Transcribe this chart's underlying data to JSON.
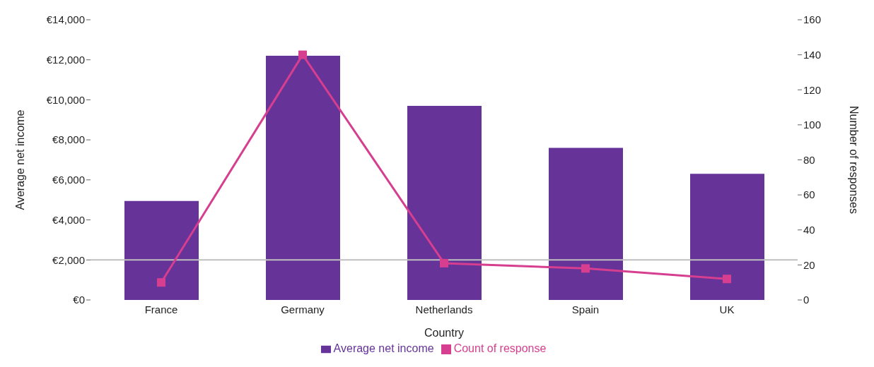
{
  "chart_data": {
    "type": "bar",
    "xlabel": "Country",
    "ylabel": "Average net income",
    "y2label": "Number of responses",
    "categories": [
      "France",
      "Germany",
      "Netherlands",
      "Spain",
      "UK"
    ],
    "series": [
      {
        "name": "Average net income",
        "color": "#663399",
        "values": [
          4950,
          12200,
          9700,
          7600,
          6300
        ]
      },
      {
        "name": "Count of response",
        "type": "line",
        "axis": "y2",
        "color": "#d63e8f",
        "marker": "square",
        "values": [
          10,
          140,
          21,
          18,
          12
        ]
      }
    ],
    "ylim": [
      0,
      14000
    ],
    "yticks": [
      {
        "value": 0,
        "label": "€0"
      },
      {
        "value": 2000,
        "label": "€2,000"
      },
      {
        "value": 4000,
        "label": "€4,000"
      },
      {
        "value": 6000,
        "label": "€6,000"
      },
      {
        "value": 8000,
        "label": "€8,000"
      },
      {
        "value": 10000,
        "label": "€10,000"
      },
      {
        "value": 12000,
        "label": "€12,000"
      },
      {
        "value": 14000,
        "label": "€14,000"
      }
    ],
    "y2lim": [
      0,
      160
    ],
    "y2ticks": [
      0,
      20,
      40,
      60,
      80,
      100,
      120,
      140,
      160
    ],
    "ref_lines": [
      {
        "axis": "y",
        "value": 2000,
        "color": "#bfbfbf"
      }
    ],
    "grid": false,
    "legend": "bottom"
  }
}
